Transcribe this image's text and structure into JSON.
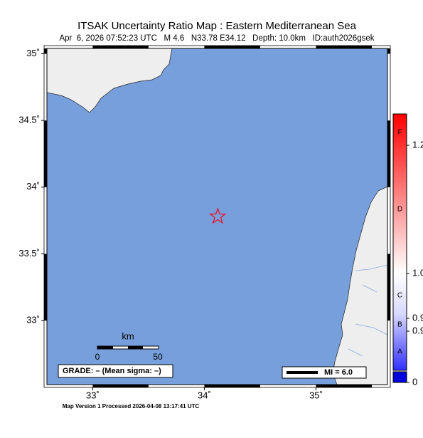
{
  "title": "ITSAK Uncertainty Ratio Map : Eastern Mediterranean Sea",
  "subtitle": "Apr  6, 2026 07:52:23 UTC   M 4.6   N33.78 E34.12   Depth: 10.0km   ID:auth2026gsek",
  "map": {
    "xlim": [
      32.59,
      35.64
    ],
    "ylim": [
      32.52,
      35.04
    ],
    "xticks": [
      {
        "value": 33,
        "label": "33˚"
      },
      {
        "value": 34,
        "label": "34˚"
      },
      {
        "value": 35,
        "label": "35˚"
      }
    ],
    "yticks": [
      {
        "value": 33,
        "label": "33˚"
      },
      {
        "value": 33.5,
        "label": "33.5˚"
      },
      {
        "value": 34,
        "label": "34˚"
      },
      {
        "value": 34.5,
        "label": "34.5˚"
      },
      {
        "value": 35,
        "label": "35˚"
      }
    ],
    "epicenter": {
      "lon": 34.12,
      "lat": 33.78
    }
  },
  "scale_bar": {
    "title": "km",
    "labels": [
      "0",
      "50"
    ]
  },
  "grade": "GRADE: – (Mean sigma: –)",
  "mi_legend": "MI = 6.0",
  "colorbar": {
    "letters": [
      "F",
      "D",
      "C",
      "B",
      "A"
    ],
    "tick_labels": [
      "1.2",
      "1.0",
      "0.9",
      "0.9",
      "0"
    ]
  },
  "footer": "Map Version 1 Processed 2026-04-08 13:17:41 UTC"
}
